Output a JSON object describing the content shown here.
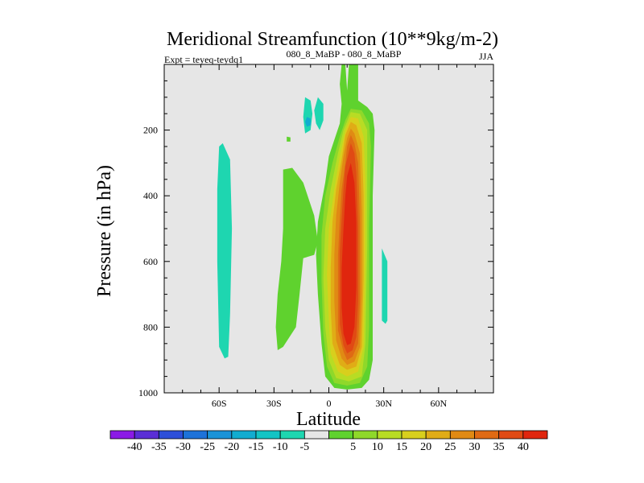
{
  "chart_data": {
    "type": "heatmap",
    "title": "Meridional Streamfunction (10**9kg/m-2)",
    "left_label": "Expt = teyeq-teydq1",
    "center_label": "080_8_MaBP - 080_8_MaBP",
    "right_label": "JJA",
    "xlabel": "Latitude",
    "ylabel": "Pressure (in hPa)",
    "xlim": [
      -90,
      90
    ],
    "ylim": [
      1000,
      0
    ],
    "x_ticks": [
      {
        "value": -60,
        "label": "60S"
      },
      {
        "value": -30,
        "label": "30S"
      },
      {
        "value": 0,
        "label": "0"
      },
      {
        "value": 30,
        "label": "30N"
      },
      {
        "value": 60,
        "label": "60N"
      }
    ],
    "y_ticks": [
      {
        "value": 200,
        "label": "200"
      },
      {
        "value": 400,
        "label": "400"
      },
      {
        "value": 600,
        "label": "600"
      },
      {
        "value": 800,
        "label": "800"
      },
      {
        "value": 1000,
        "label": "1000"
      }
    ],
    "background_color": "#e6e6e6",
    "colorbar": {
      "labels": [
        "-40",
        "-35",
        "-30",
        "-25",
        "-20",
        "-15",
        "-10",
        "-5",
        "5",
        "10",
        "15",
        "20",
        "25",
        "30",
        "35",
        "40"
      ],
      "colors": [
        "#8b1ae6",
        "#5a2ed6",
        "#2d4fd9",
        "#1d72d9",
        "#1a93d8",
        "#12acd0",
        "#13c4c4",
        "#1ed6b0",
        "#e6e6e6",
        "#5fd22e",
        "#8fd82a",
        "#b8dc24",
        "#d8cf1d",
        "#e0ac16",
        "#e08a14",
        "#df6a14",
        "#e04a14",
        "#e0260e"
      ]
    },
    "contours": [
      {
        "name": "neg-south-band",
        "level": "-5",
        "color": "#1ed6b0",
        "points": [
          [
            -58,
            240
          ],
          [
            -54,
            290
          ],
          [
            -53,
            500
          ],
          [
            -54,
            760
          ],
          [
            -55,
            890
          ],
          [
            -57,
            895
          ],
          [
            -60,
            860
          ],
          [
            -61,
            600
          ],
          [
            -61,
            380
          ],
          [
            -60,
            250
          ]
        ]
      },
      {
        "name": "neg-upper-left",
        "level": "-5",
        "color": "#1ed6b0",
        "points": [
          [
            -13,
            100
          ],
          [
            -10,
            110
          ],
          [
            -9,
            150
          ],
          [
            -10,
            200
          ],
          [
            -13,
            210
          ],
          [
            -14,
            160
          ]
        ]
      },
      {
        "name": "neg-upper-right",
        "level": "-5",
        "color": "#1ed6b0",
        "points": [
          [
            -6,
            100
          ],
          [
            -3,
            120
          ],
          [
            -3,
            170
          ],
          [
            -5,
            200
          ],
          [
            -7,
            180
          ],
          [
            -8,
            140
          ]
        ]
      },
      {
        "name": "neg-upper-core",
        "level": "-15",
        "color": "#12acd0",
        "points": [
          [
            -12,
            160
          ],
          [
            -10,
            165
          ],
          [
            -10,
            185
          ],
          [
            -12,
            190
          ],
          [
            -13,
            175
          ]
        ]
      },
      {
        "name": "neg-north-strip",
        "level": "-5",
        "color": "#1ed6b0",
        "points": [
          [
            29,
            560
          ],
          [
            32,
            600
          ],
          [
            32,
            780
          ],
          [
            31,
            790
          ],
          [
            29,
            780
          ],
          [
            29,
            640
          ]
        ]
      },
      {
        "name": "pos-small-blob",
        "level": "5",
        "color": "#5fd22e",
        "points": [
          [
            -23,
            220
          ],
          [
            -21,
            222
          ],
          [
            -21,
            235
          ],
          [
            -23,
            235
          ]
        ]
      },
      {
        "name": "pos-side-lobe",
        "level": "5",
        "color": "#5fd22e",
        "points": [
          [
            -25,
            320
          ],
          [
            -20,
            315
          ],
          [
            -14,
            360
          ],
          [
            -8,
            460
          ],
          [
            -6,
            540
          ],
          [
            -8,
            580
          ],
          [
            -14,
            590
          ],
          [
            -16,
            700
          ],
          [
            -18,
            800
          ],
          [
            -25,
            860
          ],
          [
            -28,
            870
          ],
          [
            -29,
            800
          ],
          [
            -28,
            700
          ],
          [
            -26,
            600
          ],
          [
            -25,
            500
          ]
        ]
      },
      {
        "name": "pos-outer",
        "level": "5",
        "color": "#5fd22e",
        "points": [
          [
            7,
            0
          ],
          [
            9,
            0
          ],
          [
            10,
            80
          ],
          [
            11,
            0
          ],
          [
            16,
            0
          ],
          [
            16,
            110
          ],
          [
            21,
            130
          ],
          [
            24,
            150
          ],
          [
            25,
            200
          ],
          [
            24,
            400
          ],
          [
            24,
            700
          ],
          [
            24,
            900
          ],
          [
            22,
            960
          ],
          [
            18,
            985
          ],
          [
            10,
            990
          ],
          [
            3,
            985
          ],
          [
            -2,
            950
          ],
          [
            -4,
            850
          ],
          [
            -6,
            700
          ],
          [
            -7,
            580
          ],
          [
            -6,
            480
          ],
          [
            -2,
            360
          ],
          [
            0,
            280
          ],
          [
            3,
            230
          ],
          [
            6,
            180
          ],
          [
            7,
            120
          ],
          [
            6,
            60
          ]
        ]
      },
      {
        "name": "pos-10",
        "level": "10",
        "color": "#8fd82a",
        "points": [
          [
            12,
            135
          ],
          [
            18,
            140
          ],
          [
            22,
            180
          ],
          [
            23,
            250
          ],
          [
            22,
            500
          ],
          [
            22,
            800
          ],
          [
            21,
            920
          ],
          [
            17,
            970
          ],
          [
            10,
            978
          ],
          [
            3,
            970
          ],
          [
            -1,
            920
          ],
          [
            -3,
            820
          ],
          [
            -4,
            660
          ],
          [
            -4,
            520
          ],
          [
            -2,
            400
          ],
          [
            2,
            300
          ],
          [
            6,
            220
          ],
          [
            9,
            170
          ]
        ]
      },
      {
        "name": "pos-15",
        "level": "15",
        "color": "#b8dc24",
        "points": [
          [
            12,
            145
          ],
          [
            17,
            150
          ],
          [
            21,
            200
          ],
          [
            21,
            300
          ],
          [
            21,
            550
          ],
          [
            20,
            850
          ],
          [
            18,
            950
          ],
          [
            11,
            965
          ],
          [
            4,
            955
          ],
          [
            0,
            900
          ],
          [
            -2,
            800
          ],
          [
            -3,
            650
          ],
          [
            -2,
            500
          ],
          [
            1,
            380
          ],
          [
            5,
            270
          ],
          [
            8,
            200
          ]
        ]
      },
      {
        "name": "pos-20",
        "level": "20",
        "color": "#d8cf1d",
        "points": [
          [
            12,
            160
          ],
          [
            16,
            165
          ],
          [
            19,
            220
          ],
          [
            20,
            350
          ],
          [
            20,
            600
          ],
          [
            19,
            860
          ],
          [
            16,
            935
          ],
          [
            10,
            950
          ],
          [
            5,
            935
          ],
          [
            1,
            880
          ],
          [
            0,
            780
          ],
          [
            -1,
            640
          ],
          [
            0,
            500
          ],
          [
            3,
            380
          ],
          [
            6,
            280
          ],
          [
            9,
            200
          ]
        ]
      },
      {
        "name": "pos-25",
        "level": "25",
        "color": "#e0ac16",
        "points": [
          [
            12,
            175
          ],
          [
            15,
            185
          ],
          [
            18,
            240
          ],
          [
            19,
            400
          ],
          [
            19,
            650
          ],
          [
            18,
            860
          ],
          [
            15,
            920
          ],
          [
            10,
            930
          ],
          [
            6,
            915
          ],
          [
            2,
            850
          ],
          [
            1,
            740
          ],
          [
            1,
            620
          ],
          [
            2,
            480
          ],
          [
            4,
            380
          ],
          [
            7,
            290
          ],
          [
            9,
            215
          ]
        ]
      },
      {
        "name": "pos-30",
        "level": "30",
        "color": "#e08a14",
        "points": [
          [
            12,
            195
          ],
          [
            14,
            210
          ],
          [
            17,
            270
          ],
          [
            18,
            450
          ],
          [
            18,
            700
          ],
          [
            17,
            860
          ],
          [
            14,
            905
          ],
          [
            10,
            915
          ],
          [
            7,
            895
          ],
          [
            4,
            840
          ],
          [
            3,
            720
          ],
          [
            3,
            580
          ],
          [
            4,
            460
          ],
          [
            6,
            360
          ],
          [
            8,
            280
          ],
          [
            10,
            225
          ]
        ]
      },
      {
        "name": "pos-35",
        "level": "35",
        "color": "#df6a14",
        "points": [
          [
            12,
            215
          ],
          [
            14,
            240
          ],
          [
            16,
            300
          ],
          [
            17,
            480
          ],
          [
            17,
            720
          ],
          [
            16,
            850
          ],
          [
            13,
            890
          ],
          [
            10,
            900
          ],
          [
            8,
            875
          ],
          [
            5,
            810
          ],
          [
            5,
            700
          ],
          [
            5,
            580
          ],
          [
            6,
            470
          ],
          [
            7,
            380
          ],
          [
            9,
            300
          ],
          [
            10,
            250
          ]
        ]
      },
      {
        "name": "pos-40",
        "level": "40",
        "color": "#e04a14",
        "points": [
          [
            12,
            240
          ],
          [
            14,
            270
          ],
          [
            15,
            330
          ],
          [
            16,
            500
          ],
          [
            16,
            720
          ],
          [
            15,
            830
          ],
          [
            13,
            870
          ],
          [
            10,
            880
          ],
          [
            8,
            855
          ],
          [
            6,
            790
          ],
          [
            6,
            680
          ],
          [
            6,
            570
          ],
          [
            7,
            470
          ],
          [
            8,
            380
          ],
          [
            9,
            310
          ],
          [
            11,
            265
          ]
        ]
      },
      {
        "name": "pos-45",
        "level": "45",
        "color": "#e0260e",
        "points": [
          [
            12,
            300
          ],
          [
            14,
            360
          ],
          [
            15,
            480
          ],
          [
            15,
            680
          ],
          [
            14,
            800
          ],
          [
            12,
            850
          ],
          [
            10,
            855
          ],
          [
            8,
            820
          ],
          [
            7,
            740
          ],
          [
            7,
            620
          ],
          [
            8,
            500
          ],
          [
            9,
            400
          ],
          [
            10,
            340
          ]
        ]
      }
    ]
  }
}
